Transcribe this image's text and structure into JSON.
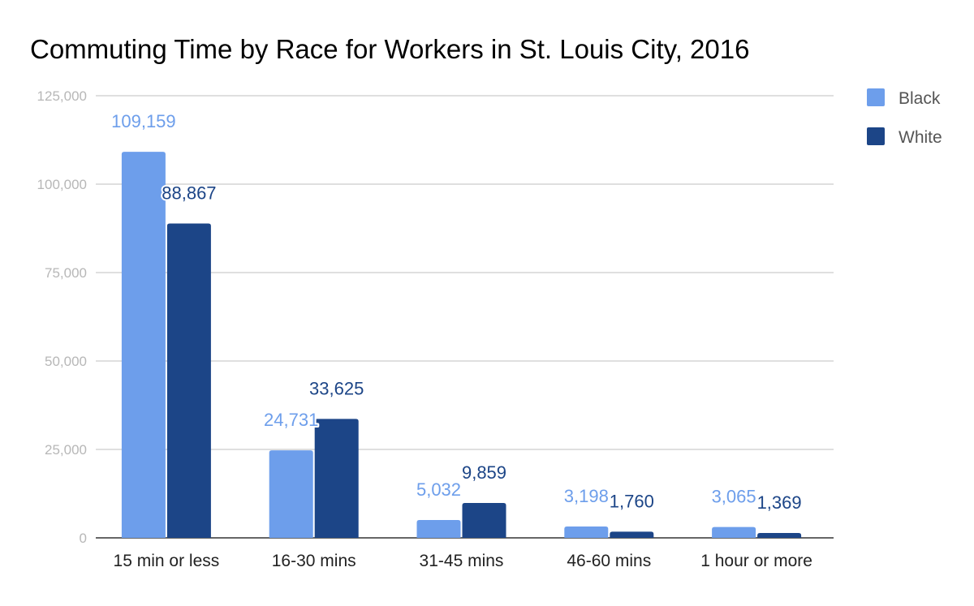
{
  "chart_data": {
    "type": "bar",
    "title": "Commuting Time by Race for Workers in St. Louis City, 2016",
    "xlabel": "",
    "ylabel": "",
    "categories": [
      "15 min or less",
      "16-30 mins",
      "31-45 mins",
      "46-60 mins",
      "1 hour or more"
    ],
    "series": [
      {
        "name": "Black",
        "color": "#6d9eeb",
        "values": [
          109159,
          24731,
          5032,
          3198,
          3065
        ]
      },
      {
        "name": "White",
        "color": "#1c4587",
        "values": [
          88867,
          33625,
          9859,
          1760,
          1369
        ]
      }
    ],
    "data_labels": {
      "Black": [
        "109,159",
        "24,731",
        "5,032",
        "3,198",
        "3,065"
      ],
      "White": [
        "88,867",
        "33,625",
        "9,859",
        "1,760",
        "1,369"
      ]
    },
    "ylim": [
      0,
      125000
    ],
    "yticks": [
      "0",
      "25,000",
      "50,000",
      "75,000",
      "100,000",
      "125,000"
    ],
    "grid": true,
    "legend_position": "right"
  }
}
